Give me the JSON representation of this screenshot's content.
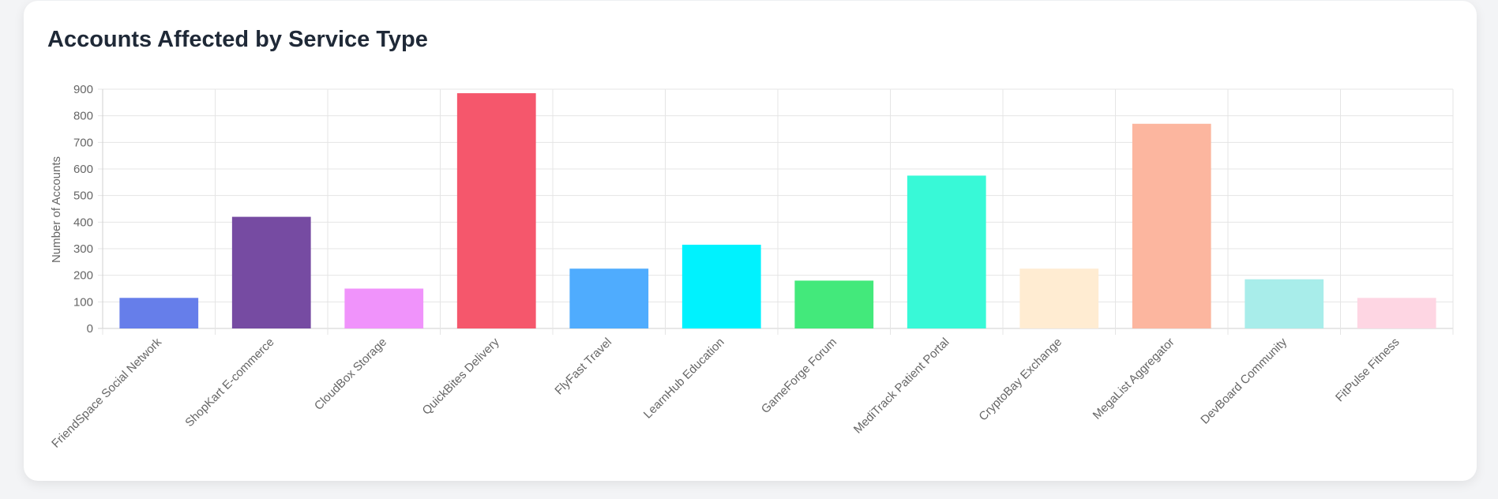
{
  "card": {
    "title": "Accounts Affected by Service Type"
  },
  "chart_data": {
    "type": "bar",
    "title": "Accounts Affected by Service Type",
    "xlabel": "",
    "ylabel": "Number of Accounts",
    "ylim": [
      0,
      900
    ],
    "yticks": [
      0,
      100,
      200,
      300,
      400,
      500,
      600,
      700,
      800,
      900
    ],
    "grid": true,
    "categories": [
      "FriendSpace Social Network",
      "ShopKart E-commerce",
      "CloudBox Storage",
      "QuickBites Delivery",
      "FlyFast Travel",
      "LearnHub Education",
      "GameForge Forum",
      "MediTrack Patient Portal",
      "CryptoBay Exchange",
      "MegaList Aggregator",
      "DevBoard Community",
      "FitPulse Fitness"
    ],
    "values": [
      115,
      420,
      150,
      885,
      225,
      315,
      180,
      575,
      225,
      770,
      185,
      115
    ],
    "colors": [
      "#667eea",
      "#764ba2",
      "#f093fb",
      "#f5576c",
      "#4facfe",
      "#00f2fe",
      "#43e97b",
      "#38f9d7",
      "#ffecd2",
      "#fcb69f",
      "#a8edea",
      "#fed6e3"
    ]
  }
}
